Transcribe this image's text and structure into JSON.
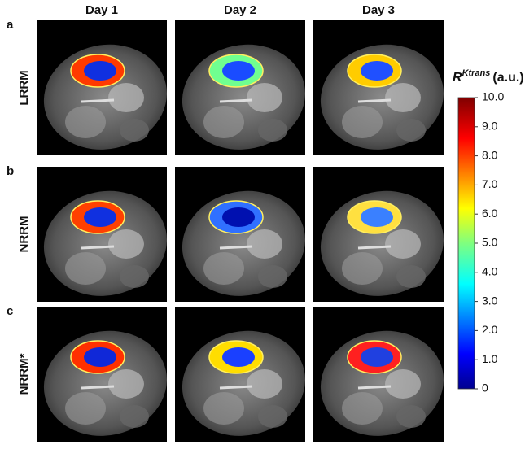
{
  "columns": [
    "Day 1",
    "Day 2",
    "Day 3"
  ],
  "rows": [
    {
      "letter": "a",
      "name": "LRRM"
    },
    {
      "letter": "b",
      "name": "NRRM"
    },
    {
      "letter": "c",
      "name": "NRRM*"
    }
  ],
  "colorbar": {
    "symbol": "R",
    "superscript": "Ktrans",
    "unit": "(a.u.)",
    "lim": [
      0,
      10
    ],
    "ticks": [
      {
        "value": 10,
        "label": "10.0"
      },
      {
        "value": 9,
        "label": "9.0"
      },
      {
        "value": 8,
        "label": "8.0"
      },
      {
        "value": 7,
        "label": "7.0"
      },
      {
        "value": 6,
        "label": "6.0"
      },
      {
        "value": 5,
        "label": "5.0"
      },
      {
        "value": 4,
        "label": "4.0"
      },
      {
        "value": 3,
        "label": "3.0"
      },
      {
        "value": 2,
        "label": "2.0"
      },
      {
        "value": 1,
        "label": "1.0"
      },
      0
    ]
  }
}
